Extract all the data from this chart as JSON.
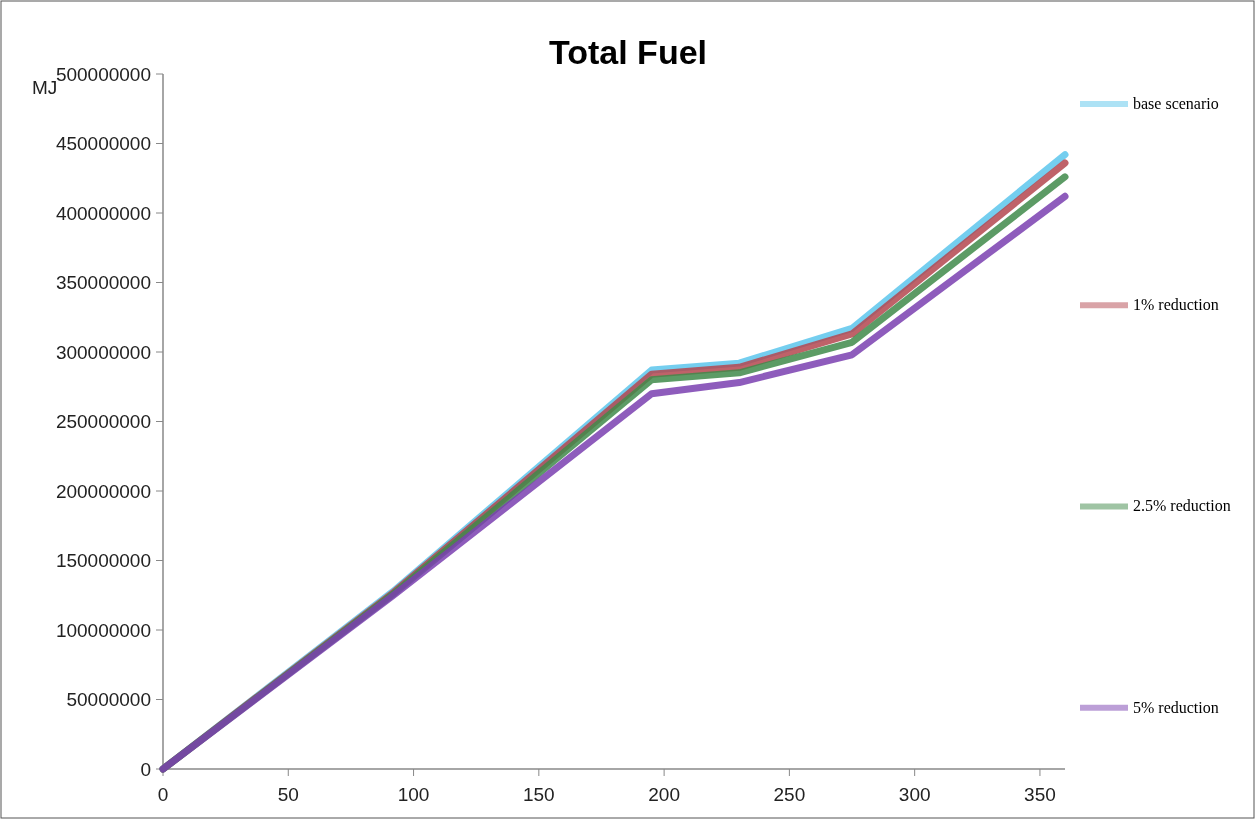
{
  "chart_data": {
    "type": "line",
    "title": "Total Fuel",
    "ylabel": "MJ",
    "x": [
      0,
      92,
      195,
      230,
      275,
      360
    ],
    "series": [
      {
        "name": "base scenario",
        "color": "#5cc6ec",
        "values": [
          0,
          128000000,
          287000000,
          292000000,
          317000000,
          442000000
        ]
      },
      {
        "name": "1% reduction",
        "color": "#b4474f",
        "values": [
          0,
          127000000,
          284000000,
          289000000,
          313000000,
          436000000
        ]
      },
      {
        "name": "2.5% reduction",
        "color": "#3f8a4a",
        "values": [
          0,
          126000000,
          280000000,
          285000000,
          307000000,
          426000000
        ]
      },
      {
        "name": "5% reduction",
        "color": "#7a3fb0",
        "values": [
          0,
          125000000,
          270000000,
          278000000,
          298000000,
          412000000
        ]
      }
    ],
    "xlim": [
      0,
      360
    ],
    "xticks": [
      0,
      50,
      100,
      150,
      200,
      250,
      300,
      350
    ],
    "ylim": [
      0,
      500000000
    ],
    "yticks": [
      0,
      50000000,
      100000000,
      150000000,
      200000000,
      250000000,
      300000000,
      350000000,
      400000000,
      450000000,
      500000000
    ],
    "grid": false,
    "legend": "right",
    "marker": "none",
    "line_style": "solid"
  }
}
